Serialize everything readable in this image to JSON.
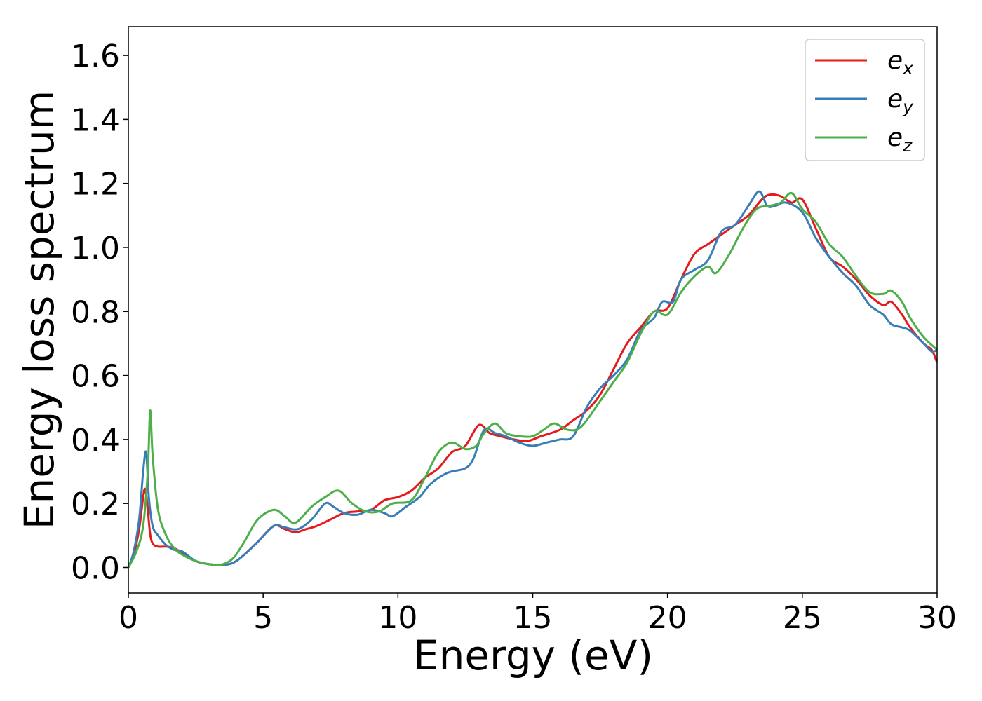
{
  "chart_data": {
    "type": "line",
    "title": "",
    "xlabel": "Energy (eV)",
    "ylabel": "Energy loss spectrum",
    "xlim": [
      0,
      30
    ],
    "ylim": [
      -0.08,
      1.69
    ],
    "xticks": [
      0,
      5,
      10,
      15,
      20,
      25,
      30
    ],
    "yticks": [
      0.0,
      0.2,
      0.4,
      0.6,
      0.8,
      1.0,
      1.2,
      1.4,
      1.6
    ],
    "grid": false,
    "legend_position": "top-right",
    "series": [
      {
        "name": "e",
        "subscript": "x",
        "color": "#e41a1c",
        "points": [
          [
            0,
            0.0
          ],
          [
            0.2,
            0.04
          ],
          [
            0.4,
            0.12
          ],
          [
            0.55,
            0.22
          ],
          [
            0.62,
            0.245
          ],
          [
            0.7,
            0.2
          ],
          [
            0.8,
            0.11
          ],
          [
            0.9,
            0.075
          ],
          [
            1.1,
            0.065
          ],
          [
            1.4,
            0.065
          ],
          [
            1.7,
            0.06
          ],
          [
            2.0,
            0.045
          ],
          [
            2.5,
            0.02
          ],
          [
            3.0,
            0.01
          ],
          [
            3.5,
            0.008
          ],
          [
            3.9,
            0.015
          ],
          [
            4.3,
            0.04
          ],
          [
            4.8,
            0.08
          ],
          [
            5.4,
            0.13
          ],
          [
            5.8,
            0.12
          ],
          [
            6.2,
            0.11
          ],
          [
            6.6,
            0.12
          ],
          [
            7.0,
            0.13
          ],
          [
            7.5,
            0.15
          ],
          [
            8.0,
            0.17
          ],
          [
            8.5,
            0.175
          ],
          [
            9.0,
            0.18
          ],
          [
            9.5,
            0.21
          ],
          [
            10.0,
            0.22
          ],
          [
            10.5,
            0.24
          ],
          [
            11.0,
            0.28
          ],
          [
            11.5,
            0.31
          ],
          [
            12.0,
            0.36
          ],
          [
            12.5,
            0.38
          ],
          [
            13.0,
            0.445
          ],
          [
            13.4,
            0.42
          ],
          [
            13.8,
            0.41
          ],
          [
            14.3,
            0.4
          ],
          [
            14.8,
            0.395
          ],
          [
            15.3,
            0.41
          ],
          [
            16.0,
            0.43
          ],
          [
            16.5,
            0.46
          ],
          [
            17.0,
            0.49
          ],
          [
            17.5,
            0.54
          ],
          [
            18.0,
            0.62
          ],
          [
            18.5,
            0.7
          ],
          [
            19.0,
            0.75
          ],
          [
            19.5,
            0.8
          ],
          [
            20.0,
            0.81
          ],
          [
            20.5,
            0.9
          ],
          [
            21.0,
            0.98
          ],
          [
            21.5,
            1.01
          ],
          [
            22.0,
            1.04
          ],
          [
            22.5,
            1.07
          ],
          [
            23.0,
            1.1
          ],
          [
            23.5,
            1.15
          ],
          [
            23.8,
            1.165
          ],
          [
            24.2,
            1.16
          ],
          [
            24.6,
            1.14
          ],
          [
            25.0,
            1.15
          ],
          [
            25.5,
            1.06
          ],
          [
            26.0,
            0.97
          ],
          [
            26.5,
            0.94
          ],
          [
            27.0,
            0.9
          ],
          [
            27.5,
            0.85
          ],
          [
            28.0,
            0.82
          ],
          [
            28.3,
            0.83
          ],
          [
            28.7,
            0.79
          ],
          [
            29.0,
            0.75
          ],
          [
            29.5,
            0.7
          ],
          [
            29.8,
            0.68
          ],
          [
            30.0,
            0.64
          ]
        ]
      },
      {
        "name": "e",
        "subscript": "y",
        "color": "#377eb8",
        "points": [
          [
            0,
            0.0
          ],
          [
            0.2,
            0.05
          ],
          [
            0.4,
            0.15
          ],
          [
            0.55,
            0.3
          ],
          [
            0.66,
            0.36
          ],
          [
            0.76,
            0.22
          ],
          [
            0.9,
            0.13
          ],
          [
            1.1,
            0.1
          ],
          [
            1.4,
            0.07
          ],
          [
            1.7,
            0.055
          ],
          [
            2.0,
            0.05
          ],
          [
            2.5,
            0.02
          ],
          [
            3.0,
            0.01
          ],
          [
            3.5,
            0.008
          ],
          [
            3.9,
            0.015
          ],
          [
            4.3,
            0.04
          ],
          [
            4.8,
            0.08
          ],
          [
            5.4,
            0.13
          ],
          [
            5.8,
            0.125
          ],
          [
            6.3,
            0.12
          ],
          [
            6.8,
            0.15
          ],
          [
            7.3,
            0.2
          ],
          [
            7.6,
            0.19
          ],
          [
            8.0,
            0.17
          ],
          [
            8.5,
            0.165
          ],
          [
            9.0,
            0.18
          ],
          [
            9.5,
            0.17
          ],
          [
            9.8,
            0.16
          ],
          [
            10.3,
            0.19
          ],
          [
            10.8,
            0.22
          ],
          [
            11.2,
            0.26
          ],
          [
            11.7,
            0.29
          ],
          [
            12.0,
            0.3
          ],
          [
            12.5,
            0.31
          ],
          [
            12.8,
            0.34
          ],
          [
            13.2,
            0.43
          ],
          [
            13.6,
            0.42
          ],
          [
            14.0,
            0.41
          ],
          [
            14.5,
            0.39
          ],
          [
            15.0,
            0.38
          ],
          [
            15.5,
            0.39
          ],
          [
            16.0,
            0.4
          ],
          [
            16.5,
            0.41
          ],
          [
            17.0,
            0.5
          ],
          [
            17.5,
            0.56
          ],
          [
            18.0,
            0.6
          ],
          [
            18.5,
            0.65
          ],
          [
            19.0,
            0.74
          ],
          [
            19.5,
            0.78
          ],
          [
            19.8,
            0.83
          ],
          [
            20.2,
            0.83
          ],
          [
            20.5,
            0.9
          ],
          [
            21.0,
            0.93
          ],
          [
            21.5,
            0.96
          ],
          [
            22.0,
            1.05
          ],
          [
            22.5,
            1.07
          ],
          [
            23.0,
            1.13
          ],
          [
            23.4,
            1.175
          ],
          [
            23.7,
            1.13
          ],
          [
            24.0,
            1.13
          ],
          [
            24.4,
            1.14
          ],
          [
            25.0,
            1.11
          ],
          [
            25.5,
            1.03
          ],
          [
            26.0,
            0.97
          ],
          [
            26.5,
            0.92
          ],
          [
            27.0,
            0.88
          ],
          [
            27.5,
            0.82
          ],
          [
            28.0,
            0.79
          ],
          [
            28.3,
            0.76
          ],
          [
            28.7,
            0.75
          ],
          [
            29.0,
            0.74
          ],
          [
            29.5,
            0.7
          ],
          [
            29.8,
            0.675
          ],
          [
            30.0,
            0.68
          ]
        ]
      },
      {
        "name": "e",
        "subscript": "z",
        "color": "#4daf4a",
        "points": [
          [
            0,
            0.0
          ],
          [
            0.3,
            0.05
          ],
          [
            0.55,
            0.13
          ],
          [
            0.72,
            0.3
          ],
          [
            0.81,
            0.49
          ],
          [
            0.9,
            0.35
          ],
          [
            1.1,
            0.18
          ],
          [
            1.4,
            0.1
          ],
          [
            1.7,
            0.06
          ],
          [
            2.0,
            0.04
          ],
          [
            2.5,
            0.02
          ],
          [
            3.0,
            0.01
          ],
          [
            3.5,
            0.01
          ],
          [
            3.9,
            0.03
          ],
          [
            4.3,
            0.08
          ],
          [
            4.8,
            0.15
          ],
          [
            5.4,
            0.18
          ],
          [
            5.8,
            0.16
          ],
          [
            6.2,
            0.14
          ],
          [
            6.8,
            0.19
          ],
          [
            7.3,
            0.22
          ],
          [
            7.8,
            0.24
          ],
          [
            8.3,
            0.2
          ],
          [
            8.8,
            0.175
          ],
          [
            9.3,
            0.175
          ],
          [
            9.8,
            0.2
          ],
          [
            10.5,
            0.21
          ],
          [
            11.0,
            0.28
          ],
          [
            11.5,
            0.36
          ],
          [
            12.0,
            0.39
          ],
          [
            12.5,
            0.37
          ],
          [
            12.9,
            0.38
          ],
          [
            13.2,
            0.42
          ],
          [
            13.6,
            0.45
          ],
          [
            14.0,
            0.42
          ],
          [
            14.5,
            0.41
          ],
          [
            15.0,
            0.41
          ],
          [
            15.4,
            0.43
          ],
          [
            15.8,
            0.45
          ],
          [
            16.3,
            0.43
          ],
          [
            16.8,
            0.44
          ],
          [
            17.5,
            0.52
          ],
          [
            18.0,
            0.58
          ],
          [
            18.5,
            0.64
          ],
          [
            19.0,
            0.73
          ],
          [
            19.5,
            0.8
          ],
          [
            20.0,
            0.79
          ],
          [
            20.5,
            0.86
          ],
          [
            21.0,
            0.91
          ],
          [
            21.5,
            0.94
          ],
          [
            21.8,
            0.92
          ],
          [
            22.3,
            0.98
          ],
          [
            22.8,
            1.06
          ],
          [
            23.3,
            1.12
          ],
          [
            23.8,
            1.13
          ],
          [
            24.2,
            1.14
          ],
          [
            24.6,
            1.17
          ],
          [
            25.0,
            1.12
          ],
          [
            25.5,
            1.08
          ],
          [
            26.0,
            1.01
          ],
          [
            26.5,
            0.97
          ],
          [
            27.0,
            0.91
          ],
          [
            27.5,
            0.86
          ],
          [
            28.0,
            0.855
          ],
          [
            28.3,
            0.865
          ],
          [
            28.7,
            0.83
          ],
          [
            29.0,
            0.78
          ],
          [
            29.5,
            0.72
          ],
          [
            30.0,
            0.68
          ]
        ]
      }
    ]
  }
}
